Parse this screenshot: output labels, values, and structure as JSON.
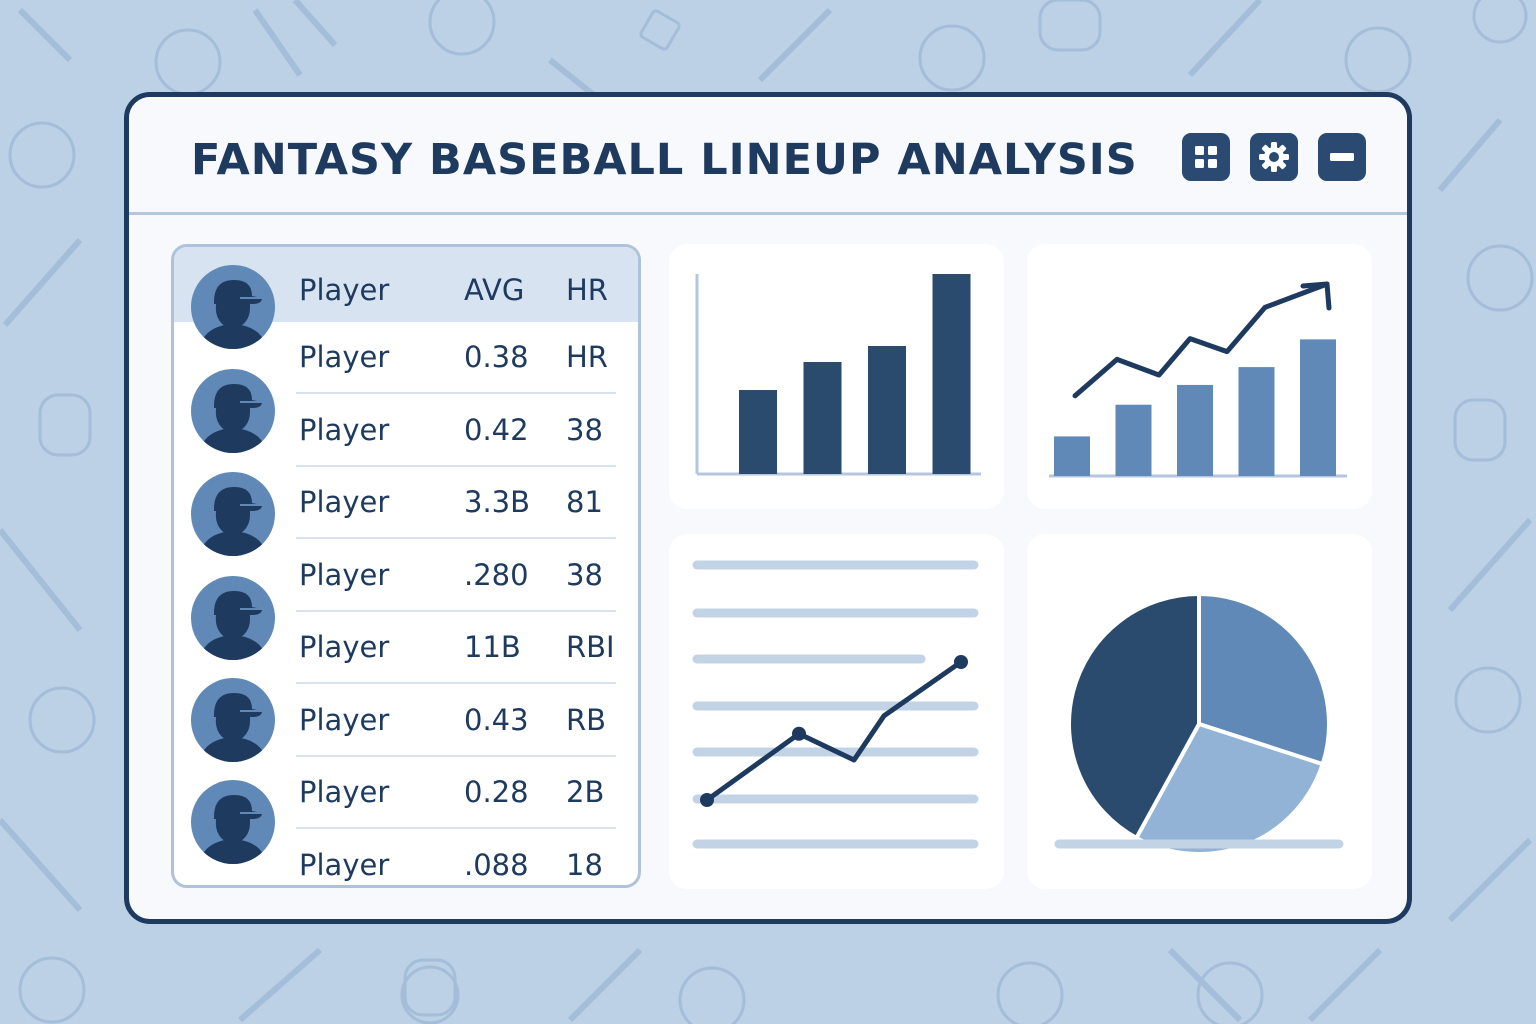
{
  "window": {
    "title": "FANTASY BASEBALL LINEUP ANALYSIS",
    "buttons": [
      {
        "name": "grid-view-button",
        "icon": "grid-icon"
      },
      {
        "name": "settings-button",
        "icon": "gear-icon"
      },
      {
        "name": "minimize-button",
        "icon": "minus-icon"
      }
    ]
  },
  "roster": {
    "columns": [
      "Player",
      "AVG",
      "HR"
    ],
    "rows": [
      [
        "Player",
        "0.38",
        "HR"
      ],
      [
        "Player",
        "0.42",
        "38"
      ],
      [
        "Player",
        "3.3B",
        "81"
      ],
      [
        "Player",
        ".280",
        "38"
      ],
      [
        "Player",
        "11B",
        "RBI"
      ],
      [
        "Player",
        "0.43",
        "RB"
      ],
      [
        "Player",
        "0.28",
        "2B"
      ],
      [
        "Player",
        ".088",
        "18"
      ]
    ]
  },
  "colors": {
    "background": "#bcd0e6",
    "frame": "#1f3a5f",
    "dark_navy": "#2a4a6e",
    "mid_blue": "#6089b8",
    "light_blue": "#92b2d6",
    "muted_line": "#b3c6dd"
  },
  "chart_data": [
    {
      "type": "bar",
      "values": [
        0.42,
        0.56,
        0.64,
        1.0
      ],
      "color": "#2a4a6e"
    },
    {
      "type": "bar",
      "values": [
        0.2,
        0.36,
        0.46,
        0.55,
        0.69
      ],
      "trend": [
        0.14,
        0.42,
        0.3,
        0.58,
        0.48,
        0.82,
        1.0
      ],
      "color": "#6089b8"
    },
    {
      "type": "line",
      "values": [
        0.0,
        0.48,
        0.29,
        0.61,
        1.0
      ]
    },
    {
      "type": "pie",
      "values": [
        0.42,
        0.3,
        0.28
      ],
      "colors": [
        "#2a4a6e",
        "#6089b8",
        "#92b2d6"
      ]
    }
  ]
}
